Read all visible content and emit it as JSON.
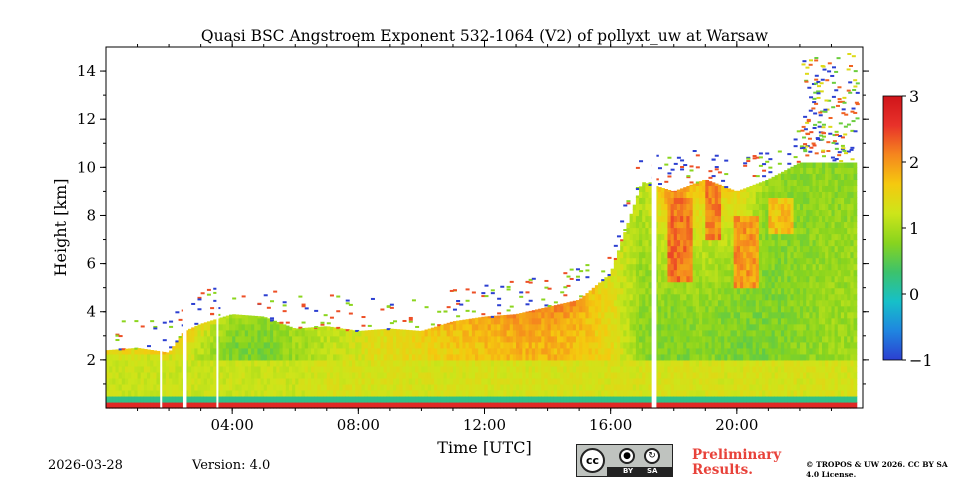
{
  "chart_data": {
    "type": "heatmap",
    "title": "Quasi BSC Angstroem Exponent 532-1064 (V2) of pollyxt_uw at Warsaw",
    "xlabel": "Time [UTC]",
    "ylabel": "Height [km]",
    "xlim_hours": [
      0,
      24
    ],
    "ylim_km": [
      0,
      15
    ],
    "x_ticks": [
      {
        "value": 4,
        "label": "04:00"
      },
      {
        "value": 8,
        "label": "08:00"
      },
      {
        "value": 12,
        "label": "12:00"
      },
      {
        "value": 16,
        "label": "16:00"
      },
      {
        "value": 20,
        "label": "20:00"
      }
    ],
    "y_ticks": [
      {
        "value": 2,
        "label": "2"
      },
      {
        "value": 4,
        "label": "4"
      },
      {
        "value": 6,
        "label": "6"
      },
      {
        "value": 8,
        "label": "8"
      },
      {
        "value": 10,
        "label": "10"
      },
      {
        "value": 12,
        "label": "12"
      },
      {
        "value": 14,
        "label": "14"
      }
    ],
    "colorbar": {
      "range": [
        -1,
        3
      ],
      "ticks": [
        {
          "value": 3,
          "label": "3"
        },
        {
          "value": 2,
          "label": "2"
        },
        {
          "value": 1,
          "label": "1"
        },
        {
          "value": 0,
          "label": "0"
        },
        {
          "value": -1,
          "label": "−1"
        }
      ],
      "colormap": [
        "#2c3fd1",
        "#1f86e0",
        "#16c0c8",
        "#3cc26c",
        "#88d41e",
        "#cde51a",
        "#f5c90f",
        "#f5861e",
        "#e8322a",
        "#d0141a"
      ]
    },
    "profile": [
      {
        "t": 0.0,
        "top": 2.4,
        "low": 1.2,
        "mid": 1.3,
        "up": 2.0
      },
      {
        "t": 1.0,
        "top": 2.5,
        "low": 1.2,
        "mid": 1.3,
        "up": 2.1
      },
      {
        "t": 2.0,
        "top": 2.3,
        "low": 1.2,
        "mid": 1.3,
        "up": 2.0
      },
      {
        "t": 2.5,
        "top": 3.2,
        "low": 1.2,
        "mid": 1.3,
        "up": 1.8
      },
      {
        "t": 3.0,
        "top": 3.5,
        "low": 1.2,
        "mid": 1.1,
        "up": 1.6
      },
      {
        "t": 4.0,
        "top": 3.9,
        "low": 1.2,
        "mid": 0.7,
        "up": 1.0
      },
      {
        "t": 5.0,
        "top": 3.8,
        "low": 1.2,
        "mid": 0.7,
        "up": 0.9
      },
      {
        "t": 6.0,
        "top": 3.3,
        "low": 1.2,
        "mid": 0.9,
        "up": 1.0
      },
      {
        "t": 7.0,
        "top": 3.4,
        "low": 1.3,
        "mid": 1.1,
        "up": 1.2
      },
      {
        "t": 8.0,
        "top": 3.2,
        "low": 1.3,
        "mid": 1.3,
        "up": 1.3
      },
      {
        "t": 9.0,
        "top": 3.3,
        "low": 1.3,
        "mid": 1.4,
        "up": 1.5
      },
      {
        "t": 10.0,
        "top": 3.2,
        "low": 1.3,
        "mid": 1.5,
        "up": 1.7
      },
      {
        "t": 11.0,
        "top": 3.6,
        "low": 1.3,
        "mid": 1.6,
        "up": 1.9
      },
      {
        "t": 12.0,
        "top": 3.8,
        "low": 1.3,
        "mid": 1.7,
        "up": 2.0
      },
      {
        "t": 13.0,
        "top": 3.9,
        "low": 1.3,
        "mid": 1.8,
        "up": 2.1
      },
      {
        "t": 14.0,
        "top": 4.2,
        "low": 1.3,
        "mid": 1.8,
        "up": 2.2
      },
      {
        "t": 15.0,
        "top": 4.5,
        "low": 1.3,
        "mid": 1.7,
        "up": 2.1
      },
      {
        "t": 16.0,
        "top": 5.6,
        "low": 1.3,
        "mid": 1.5,
        "up": 1.2
      },
      {
        "t": 17.0,
        "top": 9.4,
        "low": 1.3,
        "mid": 0.8,
        "up": 1.1
      },
      {
        "t": 18.0,
        "top": 9.0,
        "low": 1.3,
        "mid": 0.7,
        "up": 2.2
      },
      {
        "t": 19.0,
        "top": 9.5,
        "low": 1.3,
        "mid": 0.8,
        "up": 1.7
      },
      {
        "t": 20.0,
        "top": 9.0,
        "low": 1.3,
        "mid": 0.7,
        "up": 1.6
      },
      {
        "t": 21.0,
        "top": 9.5,
        "low": 1.3,
        "mid": 0.7,
        "up": 0.9
      },
      {
        "t": 22.0,
        "top": 10.2,
        "low": 1.3,
        "mid": 0.8,
        "up": 0.8
      },
      {
        "t": 23.0,
        "top": 10.2,
        "low": 1.3,
        "mid": 0.9,
        "up": 0.8
      },
      {
        "t": 23.8,
        "top": 10.2,
        "low": 1.3,
        "mid": 0.9,
        "up": 0.8
      }
    ],
    "features": [
      {
        "name": "plume-a",
        "t0": 17.7,
        "t1": 18.5,
        "h0": 5.2,
        "h1": 8.6,
        "value": 2.2
      },
      {
        "name": "plume-b",
        "t0": 19.0,
        "t1": 19.5,
        "h0": 6.8,
        "h1": 9.3,
        "value": 2.1
      },
      {
        "name": "plume-c",
        "t0": 19.9,
        "t1": 20.7,
        "h0": 5.0,
        "h1": 7.8,
        "value": 2.0
      },
      {
        "name": "plume-d",
        "t0": 21.0,
        "t1": 21.8,
        "h0": 7.2,
        "h1": 8.5,
        "value": 1.7
      }
    ],
    "gaps_hours": [
      {
        "t0": 1.72,
        "t1": 1.76
      },
      {
        "t0": 2.44,
        "t1": 2.55
      },
      {
        "t0": 3.5,
        "t1": 3.56
      },
      {
        "t0": 17.3,
        "t1": 17.45
      }
    ],
    "scatter_region": {
      "t0": 22.0,
      "t1": 23.8,
      "h0": 10.3,
      "h1": 14.8
    }
  },
  "footer": {
    "date": "2026-03-28",
    "version": "Version: 4.0",
    "license_badge": {
      "by": "BY",
      "sa": "SA",
      "cc": "cc"
    },
    "preliminary": "Preliminary Results.",
    "copyright": "© TROPOS & UW 2026. CC BY SA 4.0 License."
  }
}
